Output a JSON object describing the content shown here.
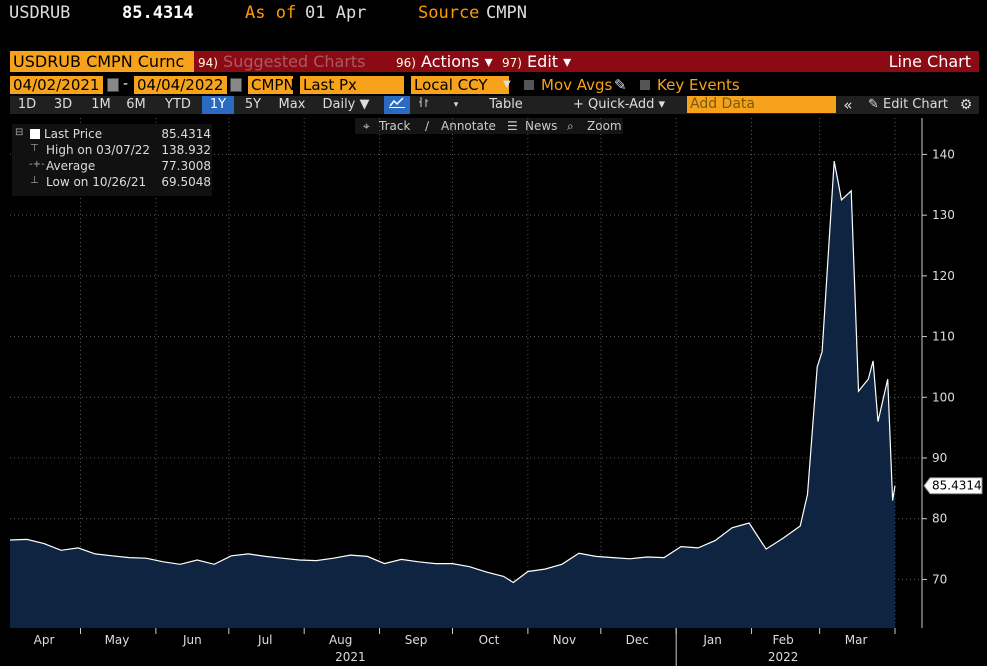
{
  "header": {
    "ticker": "USDRUB",
    "price": "85.4314",
    "as_of_label": "As of",
    "as_of_value": "01 Apr",
    "source_label": "Source",
    "source_value": "CMPN"
  },
  "toolbar1": {
    "security": "USDRUB CMPN Curnc",
    "suggested_num": "94)",
    "suggested": "Suggested Charts",
    "actions_num": "96)",
    "actions": "Actions ▾",
    "edit_num": "97)",
    "edit": "Edit ▾",
    "chart_type": "Line Chart"
  },
  "toolbar2": {
    "start_date": "04/02/2021",
    "end_date": "04/04/2022",
    "source": "CMPN",
    "field": "Last Px",
    "currency": "Local CCY",
    "mov_avgs": "Mov Avgs",
    "key_events": "Key Events"
  },
  "toolbar3": {
    "periods": [
      "1D",
      "3D",
      "1M",
      "6M",
      "YTD",
      "1Y",
      "5Y",
      "Max"
    ],
    "active_period": "1Y",
    "frequency": "Daily ▼",
    "table": "Table",
    "quick_add": "+ Quick-Add ▾",
    "add_data_placeholder": "Add Data",
    "collapse": "«",
    "edit_chart": "✎ Edit Chart",
    "settings_icon": "gear-icon"
  },
  "toolbar4": {
    "track": "Track",
    "annotate": "Annotate",
    "news": "News",
    "zoom": "Zoom"
  },
  "legend": {
    "rows": [
      {
        "label": "Last Price",
        "value": "85.4314"
      },
      {
        "label": "High on 03/07/22",
        "value": "138.932"
      },
      {
        "label": "Average",
        "value": "77.3008"
      },
      {
        "label": "Low on 10/26/21",
        "value": "69.5048"
      }
    ]
  },
  "colors": {
    "line": "#ffffff",
    "area_fill": "#0e2440",
    "accent_orange": "#f7a21b",
    "header_red": "#8b0a14",
    "grid": "#5a5a5a"
  },
  "chart_data": {
    "type": "area",
    "ylim": [
      62,
      146
    ],
    "yticks": [
      70,
      80,
      90,
      100,
      110,
      120,
      130,
      140
    ],
    "x_months": [
      "Apr",
      "May",
      "Jun",
      "Jul",
      "Aug",
      "Sep",
      "Oct",
      "Nov",
      "Dec",
      "Jan",
      "Feb",
      "Mar"
    ],
    "x_years": [
      "2021",
      "2022"
    ],
    "last_value_label": "85.4314",
    "grid": true,
    "x": [
      "2021-04-02",
      "2021-04-09",
      "2021-04-16",
      "2021-04-23",
      "2021-04-30",
      "2021-05-07",
      "2021-05-14",
      "2021-05-21",
      "2021-05-28",
      "2021-06-04",
      "2021-06-11",
      "2021-06-18",
      "2021-06-25",
      "2021-07-02",
      "2021-07-09",
      "2021-07-16",
      "2021-07-23",
      "2021-07-30",
      "2021-08-06",
      "2021-08-13",
      "2021-08-20",
      "2021-08-27",
      "2021-09-03",
      "2021-09-10",
      "2021-09-17",
      "2021-09-24",
      "2021-10-01",
      "2021-10-08",
      "2021-10-15",
      "2021-10-22",
      "2021-10-26",
      "2021-11-01",
      "2021-11-08",
      "2021-11-15",
      "2021-11-22",
      "2021-11-29",
      "2021-12-06",
      "2021-12-13",
      "2021-12-20",
      "2021-12-27",
      "2022-01-03",
      "2022-01-10",
      "2022-01-17",
      "2022-01-24",
      "2022-01-31",
      "2022-02-07",
      "2022-02-14",
      "2022-02-21",
      "2022-02-24",
      "2022-02-28",
      "2022-03-02",
      "2022-03-04",
      "2022-03-07",
      "2022-03-10",
      "2022-03-14",
      "2022-03-17",
      "2022-03-21",
      "2022-03-23",
      "2022-03-25",
      "2022-03-29",
      "2022-03-31",
      "2022-04-01"
    ],
    "values": [
      76.5,
      76.6,
      75.9,
      74.8,
      75.2,
      74.2,
      73.9,
      73.6,
      73.5,
      72.9,
      72.5,
      73.2,
      72.5,
      73.9,
      74.2,
      73.8,
      73.5,
      73.2,
      73.1,
      73.5,
      74.0,
      73.8,
      72.6,
      73.3,
      72.9,
      72.6,
      72.6,
      72.1,
      71.2,
      70.5,
      69.5,
      71.3,
      71.7,
      72.5,
      74.3,
      73.8,
      73.6,
      73.4,
      73.7,
      73.6,
      75.4,
      75.2,
      76.4,
      78.5,
      79.3,
      75.0,
      76.8,
      78.8,
      84.0,
      105.0,
      107.5,
      120.0,
      138.9,
      132.5,
      134.0,
      101.0,
      103.0,
      106.0,
      96.0,
      103.0,
      83.0,
      85.43
    ]
  }
}
